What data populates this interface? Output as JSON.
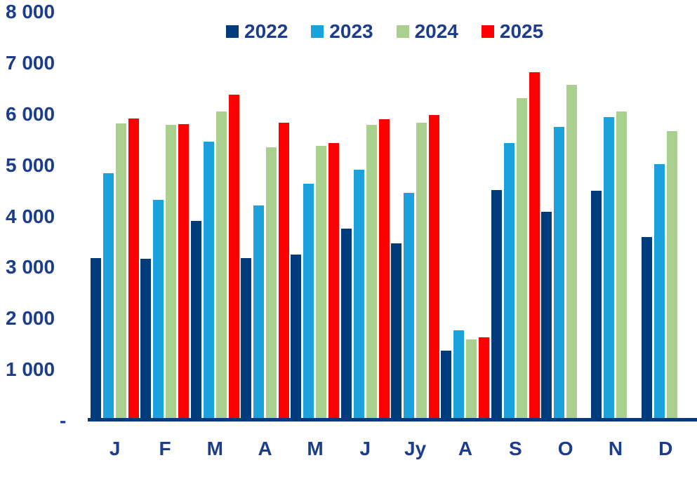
{
  "chart_data": {
    "type": "bar",
    "title": "",
    "categories": [
      "J",
      "F",
      "M",
      "A",
      "M",
      "J",
      "Jy",
      "A",
      "S",
      "O",
      "N",
      "D"
    ],
    "series": [
      {
        "name": "2022",
        "color": "#003B7C",
        "values": [
          3150,
          3140,
          3890,
          3150,
          3220,
          3730,
          3450,
          1340,
          4490,
          4060,
          4470,
          3570
        ]
      },
      {
        "name": "2023",
        "color": "#1BA1DB",
        "values": [
          4810,
          4300,
          5430,
          4190,
          4610,
          4890,
          4430,
          1740,
          5410,
          5720,
          5910,
          4990
        ]
      },
      {
        "name": "2024",
        "color": "#A9D08E",
        "values": [
          5790,
          5760,
          6030,
          5320,
          5350,
          5760,
          5810,
          1560,
          6280,
          6540,
          6030,
          5640
        ]
      },
      {
        "name": "2025",
        "color": "#FE0000",
        "values": [
          5890,
          5780,
          6360,
          5810,
          5400,
          5870,
          5960,
          1600,
          6790,
          null,
          null,
          null
        ]
      }
    ],
    "ylim": [
      0,
      8000
    ],
    "ytick_values": [
      8000,
      7000,
      6000,
      5000,
      4000,
      3000,
      2000,
      1000,
      0
    ],
    "ytick_labels": [
      "8 000",
      "7 000",
      "6 000",
      "5 000",
      "4 000",
      "3 000",
      "2 000",
      "1 000",
      "-"
    ],
    "legend_position": "top",
    "grid": false
  },
  "colors": {
    "label_text": "#1C3D8C",
    "axis_line": "#003B7C",
    "background": "#FFFFFF"
  }
}
